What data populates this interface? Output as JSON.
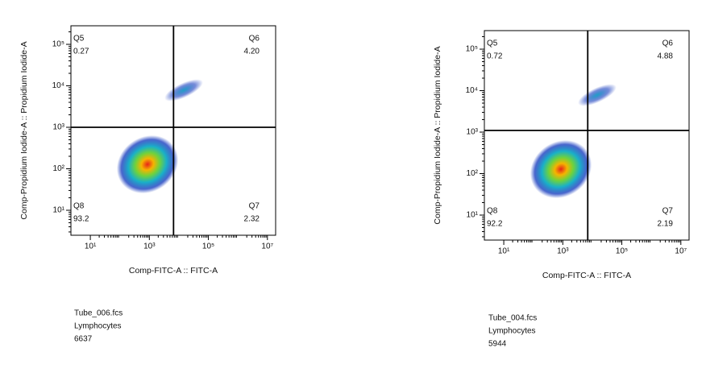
{
  "chart_data": [
    {
      "type": "scatter",
      "xlabel": "Comp-FITC-A :: FITC-A",
      "ylabel": "Comp-Propidium Iodide-A :: Propidium Iodide-A",
      "log_x": true,
      "log_y": true,
      "xlim": [
        2.2,
        19000000
      ],
      "ylim": [
        2.5,
        280000
      ],
      "xticks": [
        {
          "value": 10,
          "label": "10¹"
        },
        {
          "value": 1000,
          "label": "10³"
        },
        {
          "value": 100000,
          "label": "10⁵"
        },
        {
          "value": 10000000,
          "label": "10⁷"
        }
      ],
      "yticks": [
        {
          "value": 10,
          "label": "10¹"
        },
        {
          "value": 100,
          "label": "10²"
        },
        {
          "value": 1000,
          "label": "10³"
        },
        {
          "value": 10000,
          "label": "10⁴"
        },
        {
          "value": 100000,
          "label": "10⁵"
        }
      ],
      "gate_x": 6600,
      "gate_y": 1000,
      "quadrants": [
        {
          "name": "Q5",
          "value": 0.27
        },
        {
          "name": "Q6",
          "value": 4.2,
          "value_label": "4.20"
        },
        {
          "name": "Q7",
          "value": 2.32
        },
        {
          "name": "Q8",
          "value": 93.2
        }
      ],
      "sample": {
        "file": "Tube_006.fcs",
        "population": "Lymphocytes",
        "count": 6637
      }
    },
    {
      "type": "scatter",
      "xlabel": "Comp-FITC-A :: FITC-A",
      "ylabel": "Comp-Propidium Iodide-A :: Propidium Iodide-A",
      "log_x": true,
      "log_y": true,
      "xlim": [
        2.2,
        19000000
      ],
      "ylim": [
        2.5,
        280000
      ],
      "xticks": [
        {
          "value": 10,
          "label": "10¹"
        },
        {
          "value": 1000,
          "label": "10³"
        },
        {
          "value": 100000,
          "label": "10⁵"
        },
        {
          "value": 10000000,
          "label": "10⁷"
        }
      ],
      "yticks": [
        {
          "value": 10,
          "label": "10¹"
        },
        {
          "value": 100,
          "label": "10²"
        },
        {
          "value": 1000,
          "label": "10³"
        },
        {
          "value": 10000,
          "label": "10⁴"
        },
        {
          "value": 100000,
          "label": "10⁵"
        }
      ],
      "gate_x": 7000,
      "gate_y": 1100,
      "quadrants": [
        {
          "name": "Q5",
          "value": 0.72
        },
        {
          "name": "Q6",
          "value": 4.88
        },
        {
          "name": "Q7",
          "value": 2.19
        },
        {
          "name": "Q8",
          "value": 92.2
        }
      ],
      "sample": {
        "file": "Tube_004.fcs",
        "population": "Lymphocytes",
        "count": 5944
      }
    }
  ]
}
